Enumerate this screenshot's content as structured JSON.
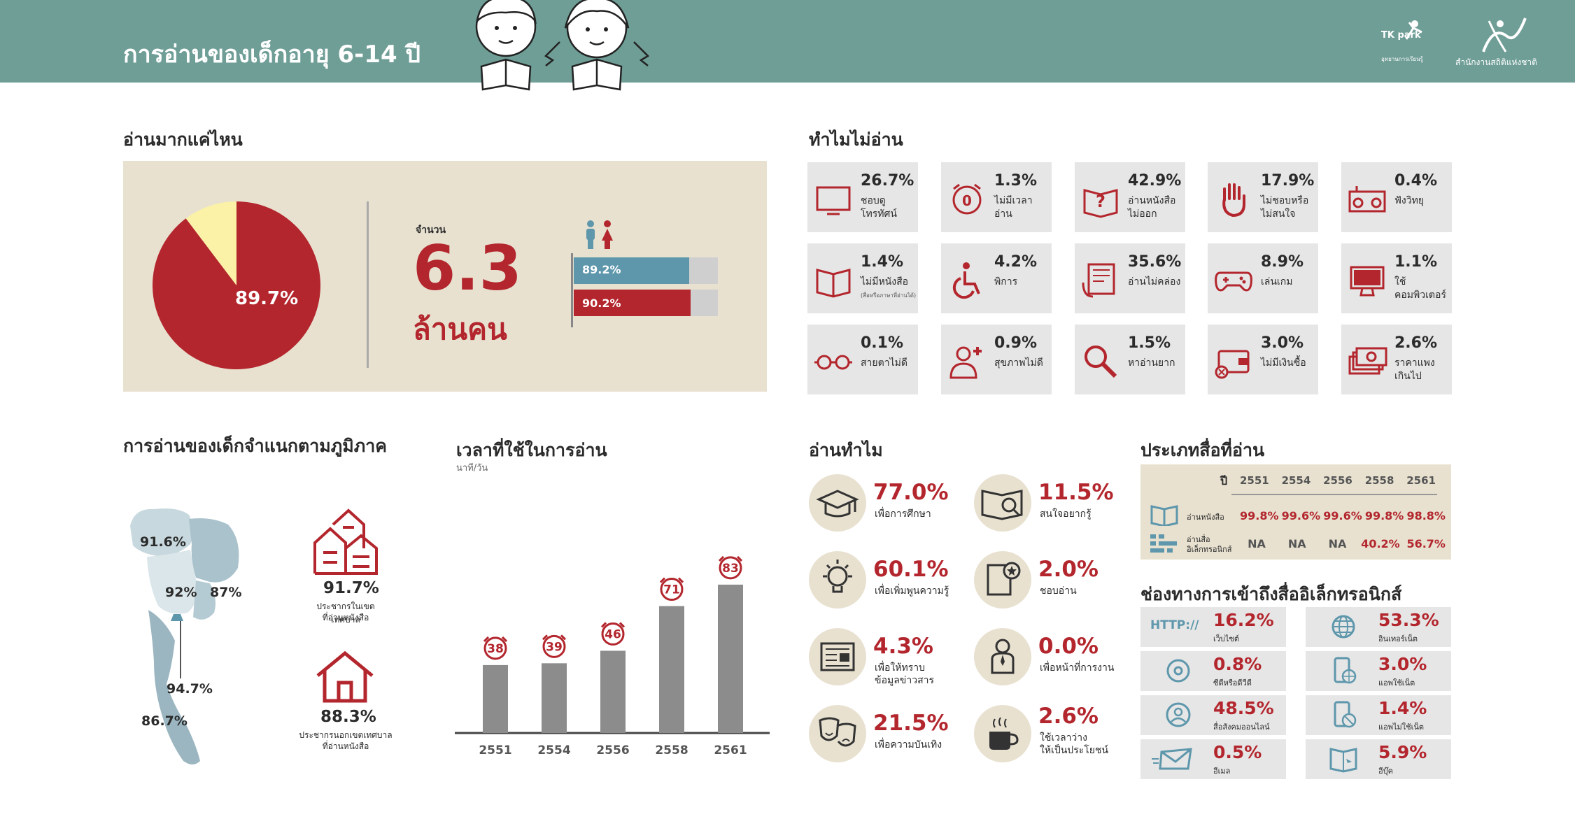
{
  "header": {
    "title": "การอ่านของเด็กอายุ 6-14 ปี",
    "logo1_big": "TK park",
    "logo1_small": "อุทยานการเรียนรู้",
    "logo2_text": "สำนักงานสถิติแห่งชาติ"
  },
  "how_much": {
    "title": "อ่านมากแค่ไหน",
    "pie_label": "89.7%",
    "count_label": "จำนวน",
    "count_value": "6.3",
    "count_unit": "ล้านคน",
    "chart_data": {
      "type": "pie",
      "title": "อ่านมากแค่ไหน",
      "slices": [
        {
          "name": "อ่าน",
          "value": 89.7,
          "color": "#b3262d"
        },
        {
          "name": "ไม่อ่าน",
          "value": 10.3,
          "color": "#fbf2a7"
        }
      ]
    },
    "gender_bars": {
      "type": "bar",
      "series": [
        {
          "name": "ชาย",
          "value": 89.2,
          "label": "89.2%",
          "color": "#5e97ac"
        },
        {
          "name": "หญิง",
          "value": 90.2,
          "label": "90.2%",
          "color": "#b3262d"
        }
      ]
    }
  },
  "why_not": {
    "title": "ทำไมไม่อ่าน",
    "items": [
      {
        "pct": "26.7%",
        "label": "ชอบดูโทรทัศน์",
        "icon": "tv-icon"
      },
      {
        "pct": "1.3%",
        "label": "ไม่มีเวลาอ่าน",
        "icon": "alarm-clock-icon"
      },
      {
        "pct": "42.9%",
        "label": "อ่านหนังสือไม่ออก",
        "icon": "question-book-icon"
      },
      {
        "pct": "17.9%",
        "label": "ไม่ชอบหรือไม่สนใจ",
        "icon": "hand-stop-icon"
      },
      {
        "pct": "0.4%",
        "label": "ฟังวิทยุ",
        "icon": "radio-icon"
      },
      {
        "pct": "1.4%",
        "label": "ไม่มีหนังสือ",
        "sublabel": "(สื่อหรือภาษาที่อ่านได้)",
        "icon": "book-icon"
      },
      {
        "pct": "4.2%",
        "label": "พิการ",
        "icon": "wheelchair-icon"
      },
      {
        "pct": "35.6%",
        "label": "อ่านไม่คล่อง",
        "icon": "newspaper-hand-icon"
      },
      {
        "pct": "8.9%",
        "label": "เล่นเกม",
        "icon": "gamepad-icon"
      },
      {
        "pct": "1.1%",
        "label": "ใช้คอมพิวเตอร์",
        "icon": "computer-icon"
      },
      {
        "pct": "0.1%",
        "label": "สายตาไม่ดี",
        "icon": "glasses-icon"
      },
      {
        "pct": "0.9%",
        "label": "สุขภาพไม่ดี",
        "icon": "sick-person-icon"
      },
      {
        "pct": "1.5%",
        "label": "หาอ่านยาก",
        "icon": "magnifier-icon"
      },
      {
        "pct": "3.0%",
        "label": "ไม่มีเงินซื้อ",
        "icon": "wallet-icon"
      },
      {
        "pct": "2.6%",
        "label": "ราคาแพงเกินไป",
        "icon": "money-icon"
      }
    ]
  },
  "region": {
    "title": "การอ่านของเด็กจำแนกตามภูมิภาค",
    "map_values": {
      "north": "91.6%",
      "central": "92%",
      "northeast": "87%",
      "bangkok": "94.7%",
      "south": "86.7%"
    },
    "urban_pct": "91.7%",
    "urban_label1": "ประชากรในเขตเทศบาล",
    "urban_label2": "ที่อ่านหนังสือ",
    "rural_pct": "88.3%",
    "rural_label1": "ประชากรนอกเขตเทศบาล",
    "rural_label2": "ที่อ่านหนังสือ"
  },
  "time": {
    "title": "เวลาที่ใช้ในการอ่าน",
    "subtitle": "นาที/วัน",
    "chart_data": {
      "type": "bar",
      "title": "เวลาที่ใช้ในการอ่าน",
      "ylabel": "นาที/วัน",
      "categories": [
        "2551",
        "2554",
        "2556",
        "2558",
        "2561"
      ],
      "values": [
        38,
        39,
        46,
        71,
        83
      ],
      "ylim": [
        0,
        90
      ]
    }
  },
  "why_read": {
    "title": "อ่านทำไม",
    "items": [
      {
        "pct": "77.0%",
        "label1": "เพื่อการศึกษา",
        "label2": "",
        "icon": "graduation-cap-icon"
      },
      {
        "pct": "11.5%",
        "label1": "สนใจอยากรู้",
        "label2": "",
        "icon": "book-magnifier-icon"
      },
      {
        "pct": "60.1%",
        "label1": "เพื่อเพิ่มพูนความรู้",
        "label2": "",
        "icon": "lightbulb-icon"
      },
      {
        "pct": "2.0%",
        "label1": "ชอบอ่าน",
        "label2": "",
        "icon": "book-star-icon"
      },
      {
        "pct": "4.3%",
        "label1": "เพื่อให้ทราบ",
        "label2": "ข้อมูลข่าวสาร",
        "icon": "news-icon"
      },
      {
        "pct": "0.0%",
        "label1": "เพื่อหน้าที่การงาน",
        "label2": "",
        "icon": "worker-icon"
      },
      {
        "pct": "21.5%",
        "label1": "เพื่อความบันเทิง",
        "label2": "",
        "icon": "theater-masks-icon"
      },
      {
        "pct": "2.6%",
        "label1": "ใช้เวลาว่าง",
        "label2": "ให้เป็นประโยชน์",
        "icon": "coffee-cup-icon"
      }
    ]
  },
  "media": {
    "title": "ประเภทสื่อที่อ่าน",
    "year_label": "ปี",
    "years": [
      "2551",
      "2554",
      "2556",
      "2558",
      "2561"
    ],
    "rows": [
      {
        "label1": "อ่านหนังสือ",
        "label2": "",
        "values": [
          "99.8%",
          "99.6%",
          "99.6%",
          "99.8%",
          "98.8%"
        ],
        "icon": "open-book-icon"
      },
      {
        "label1": "อ่านสื่อ",
        "label2": "อิเล็กทรอนิกส์",
        "values": [
          "NA",
          "NA",
          "NA",
          "40.2%",
          "56.7%"
        ],
        "icon": "digital-icon"
      }
    ]
  },
  "channels": {
    "title": "ช่องทางการเข้าถึงสื่ออิเล็กทรอนิกส์",
    "http_text": "HTTP://",
    "items": [
      {
        "pct": "16.2%",
        "label": "เว็บไซต์",
        "icon": "http-icon"
      },
      {
        "pct": "53.3%",
        "label": "อินเทอร์เน็ต",
        "icon": "globe-icon"
      },
      {
        "pct": "0.8%",
        "label": "ซีดีหรือดีวีดี",
        "icon": "cd-icon"
      },
      {
        "pct": "3.0%",
        "label": "แอพใช้เน็ต",
        "icon": "mobile-globe-icon"
      },
      {
        "pct": "48.5%",
        "label": "สื่อสังคมออนไลน์",
        "icon": "social-user-icon"
      },
      {
        "pct": "1.4%",
        "label": "แอพไม่ใช้เน็ต",
        "icon": "mobile-offline-icon"
      },
      {
        "pct": "0.5%",
        "label": "อีเมล",
        "icon": "email-icon"
      },
      {
        "pct": "5.9%",
        "label": "อีบุ๊ค",
        "icon": "ebook-icon"
      }
    ]
  }
}
